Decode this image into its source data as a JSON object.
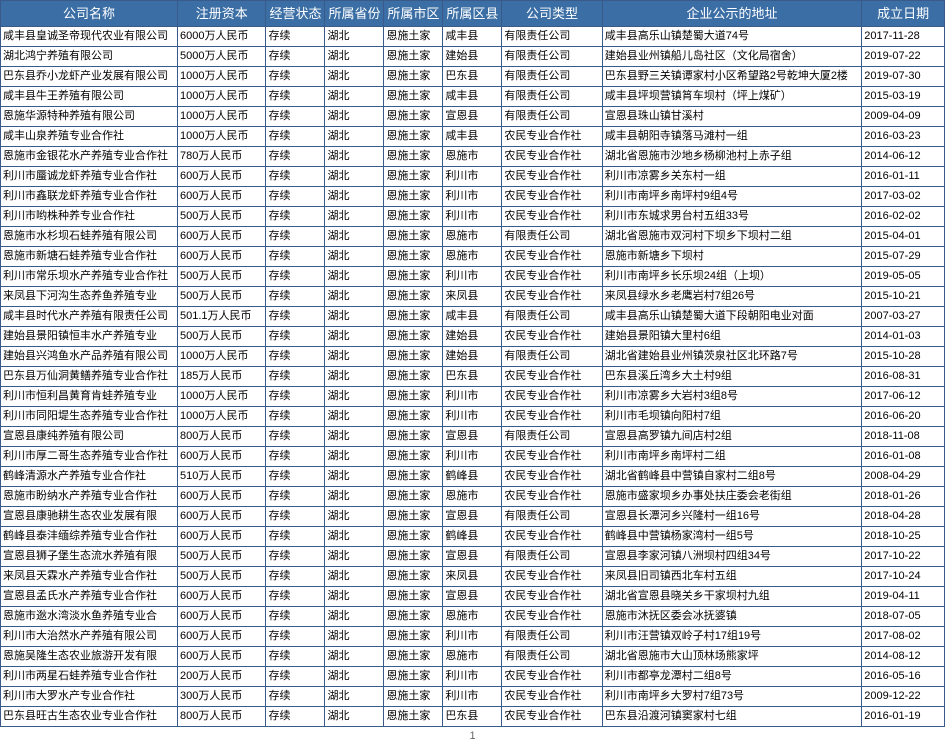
{
  "columns": [
    {
      "label": "公司名称",
      "class": "c0"
    },
    {
      "label": "注册资本",
      "class": "c1"
    },
    {
      "label": "经营状态",
      "class": "c2"
    },
    {
      "label": "所属省份",
      "class": "c3"
    },
    {
      "label": "所属市区",
      "class": "c4"
    },
    {
      "label": "所属区县",
      "class": "c5"
    },
    {
      "label": "公司类型",
      "class": "c6"
    },
    {
      "label": "企业公示的地址",
      "class": "c7"
    },
    {
      "label": "成立日期",
      "class": "c8"
    }
  ],
  "status": "存续",
  "province": "湖北",
  "city": "恩施土家",
  "rows": [
    {
      "name": "咸丰县皇诚圣帝现代农业有限公司",
      "capital": "6000万人民币",
      "district": "咸丰县",
      "type": "有限责任公司",
      "addr": "咸丰县高乐山镇楚蜀大道74号",
      "date": "2017-11-28"
    },
    {
      "name": "湖北鸿宁养殖有限公司",
      "capital": "5000万人民币",
      "district": "建始县",
      "type": "有限责任公司",
      "addr": "建始县业州镇船儿岛社区（文化局宿舍）",
      "date": "2019-07-22"
    },
    {
      "name": "巴东县乔小龙虾产业发展有限公司",
      "capital": "1000万人民币",
      "district": "巴东县",
      "type": "有限责任公司",
      "addr": "巴东县野三关镇谭家村小区希望路2号乾坤大厦2楼",
      "date": "2019-07-30"
    },
    {
      "name": "咸丰县牛王养殖有限公司",
      "capital": "1000万人民币",
      "district": "咸丰县",
      "type": "有限责任公司",
      "addr": "咸丰县坪坝营镇筲车坝村（坪上煤矿）",
      "date": "2015-03-19"
    },
    {
      "name": "恩施华源特种养殖有限公司",
      "capital": "1000万人民币",
      "district": "宣恩县",
      "type": "有限责任公司",
      "addr": "宣恩县珠山镇甘溪村",
      "date": "2009-04-09"
    },
    {
      "name": "咸丰山泉养殖专业合作社",
      "capital": "1000万人民币",
      "district": "咸丰县",
      "type": "农民专业合作社",
      "addr": "咸丰县朝阳寺镇落马滩村一组",
      "date": "2016-03-23"
    },
    {
      "name": "恩施市金银花水产养殖专业合作社",
      "capital": "780万人民币",
      "district": "恩施市",
      "type": "农民专业合作社",
      "addr": "湖北省恩施市沙地乡杨柳池村上赤子组",
      "date": "2014-06-12"
    },
    {
      "name": "利川市蜃诚龙虾养殖专业合作社",
      "capital": "600万人民币",
      "district": "利川市",
      "type": "农民专业合作社",
      "addr": "利川市凉雾乡关东村一组",
      "date": "2016-01-11"
    },
    {
      "name": "利川市鑫联龙虾养殖专业合作社",
      "capital": "600万人民币",
      "district": "利川市",
      "type": "农民专业合作社",
      "addr": "利川市南坪乡南坪村9组4号",
      "date": "2017-03-02"
    },
    {
      "name": "利川市哟株种养专业合作社",
      "capital": "500万人民币",
      "district": "利川市",
      "type": "农民专业合作社",
      "addr": "利川市东城求男台村五组33号",
      "date": "2016-02-02"
    },
    {
      "name": "恩施市水杉坝石蛙养殖有限公司",
      "capital": "600万人民币",
      "district": "恩施市",
      "type": "有限责任公司",
      "addr": "湖北省恩施市双河村下坝乡下坝村二组",
      "date": "2015-04-01"
    },
    {
      "name": "恩施市新塘石蛙养殖专业合作社",
      "capital": "600万人民币",
      "district": "恩施市",
      "type": "农民专业合作社",
      "addr": "恩施市新塘乡下坝村",
      "date": "2015-07-29"
    },
    {
      "name": "利川市常乐坝水产养殖专业合作社",
      "capital": "500万人民币",
      "district": "利川市",
      "type": "农民专业合作社",
      "addr": "利川市南坪乡长乐坝24组（上坝）",
      "date": "2019-05-05"
    },
    {
      "name": "来凤县下河沟生态养鱼养殖专业",
      "capital": "500万人民币",
      "district": "来凤县",
      "type": "农民专业合作社",
      "addr": "来凤县绿水乡老鹰岩村7组26号",
      "date": "2015-10-21"
    },
    {
      "name": "咸丰县时代水产养殖有限责任公司",
      "capital": "501.1万人民币",
      "district": "咸丰县",
      "type": "有限责任公司",
      "addr": "咸丰县高乐山镇楚蜀大道下段朝阳电业对面",
      "date": "2007-03-27"
    },
    {
      "name": "建始县景阳镇恒丰水产养殖专业",
      "capital": "500万人民币",
      "district": "建始县",
      "type": "农民专业合作社",
      "addr": "建始县景阳镇大里村6组",
      "date": "2014-01-03"
    },
    {
      "name": "建始县兴鸿鱼水产品养殖有限公司",
      "capital": "1000万人民币",
      "district": "建始县",
      "type": "有限责任公司",
      "addr": "湖北省建始县业州镇茨泉社区北环路7号",
      "date": "2015-10-28"
    },
    {
      "name": "巴东县万仙洞黄鳝养殖专业合作社",
      "capital": "185万人民币",
      "district": "巴东县",
      "type": "农民专业合作社",
      "addr": "巴东县溪丘湾乡大土村9组",
      "date": "2016-08-31"
    },
    {
      "name": "利川市恒利昌黄育肯蛙养殖专业",
      "capital": "1000万人民币",
      "district": "利川市",
      "type": "农民专业合作社",
      "addr": "利川市凉雾乡大岩村3组8号",
      "date": "2017-06-12"
    },
    {
      "name": "利川市同阳堤生态养殖专业合作社",
      "capital": "1000万人民币",
      "district": "利川市",
      "type": "农民专业合作社",
      "addr": "利川市毛坝镇向阳村7组",
      "date": "2016-06-20"
    },
    {
      "name": "宣恩县康纯养殖有限公司",
      "capital": "800万人民币",
      "district": "宣恩县",
      "type": "有限责任公司",
      "addr": "宣恩县高罗镇九间店村2组",
      "date": "2018-11-08"
    },
    {
      "name": "利川市厚二哥生态养殖专业合作社",
      "capital": "600万人民币",
      "district": "利川市",
      "type": "农民专业合作社",
      "addr": "利川市南坪乡南坪村二组",
      "date": "2016-01-08"
    },
    {
      "name": "鹤峰清源水产养殖专业合作社",
      "capital": "510万人民币",
      "district": "鹤峰县",
      "type": "农民专业合作社",
      "addr": "湖北省鹤峰县中营镇自家村二组8号",
      "date": "2008-04-29"
    },
    {
      "name": "恩施市盼纳水产养殖专业合作社",
      "capital": "600万人民币",
      "district": "恩施市",
      "type": "农民专业合作社",
      "addr": "恩施市盛家坝乡办事处扶庄委会老街组",
      "date": "2018-01-26"
    },
    {
      "name": "宣恩县康驰耕生态农业发展有限",
      "capital": "600万人民币",
      "district": "宣恩县",
      "type": "有限责任公司",
      "addr": "宣恩县长潭河乡兴隆村一组16号",
      "date": "2018-04-28"
    },
    {
      "name": "鹤峰县泰沣缅综养殖专业合作社",
      "capital": "600万人民币",
      "district": "鹤峰县",
      "type": "农民专业合作社",
      "addr": "鹤峰县中营镇杨家湾村一组5号",
      "date": "2018-10-25"
    },
    {
      "name": "宣恩县狮子堡生态流水养殖有限",
      "capital": "500万人民币",
      "district": "宣恩县",
      "type": "有限责任公司",
      "addr": "宣恩县李家河镇八洲坝村四组34号",
      "date": "2017-10-22"
    },
    {
      "name": "来凤县天霖水产养殖专业合作社",
      "capital": "500万人民币",
      "district": "来凤县",
      "type": "农民专业合作社",
      "addr": "来凤县旧司镇西北车村五组",
      "date": "2017-10-24"
    },
    {
      "name": "宣恩县孟氏水产养殖专业合作社",
      "capital": "600万人民币",
      "district": "宣恩县",
      "type": "农民专业合作社",
      "addr": "湖北省宣恩县晓关乡干家坝村九组",
      "date": "2019-04-11"
    },
    {
      "name": "恩施市逖水湾淡水鱼养殖专业合",
      "capital": "600万人民币",
      "district": "恩施市",
      "type": "农民专业合作社",
      "addr": "恩施市沐抚区委会冰抚婆镇",
      "date": "2018-07-05"
    },
    {
      "name": "利川市大治然水产养殖有限公司",
      "capital": "600万人民币",
      "district": "利川市",
      "type": "有限责任公司",
      "addr": "利川市汪营镇双岭子村17组19号",
      "date": "2017-08-02"
    },
    {
      "name": "恩施吴隆生态农业旅游开发有限",
      "capital": "600万人民币",
      "district": "恩施市",
      "type": "有限责任公司",
      "addr": "湖北省恩施市大山顶林场熊家坪",
      "date": "2014-08-12"
    },
    {
      "name": "利川市两星石蛙养殖专业合作社",
      "capital": "200万人民币",
      "district": "利川市",
      "type": "农民专业合作社",
      "addr": "利川市都亭龙潭村二组8号",
      "date": "2016-05-16"
    },
    {
      "name": "利川市大罗水产专业合作社",
      "capital": "300万人民币",
      "district": "利川市",
      "type": "农民专业合作社",
      "addr": "利川市南坪乡大罗村7组73号",
      "date": "2009-12-22"
    },
    {
      "name": "巴东县旺古生态农业专业合作社",
      "capital": "800万人民币",
      "district": "巴东县",
      "type": "农民专业合作社",
      "addr": "巴东县沿渡河镇窦家村七组",
      "date": "2016-01-19"
    }
  ],
  "footer": "1",
  "theme": {
    "header_bg": "#3a6ea5",
    "header_fg": "#ffffff",
    "border": "#3a5a8a",
    "row_fg": "#000000"
  }
}
